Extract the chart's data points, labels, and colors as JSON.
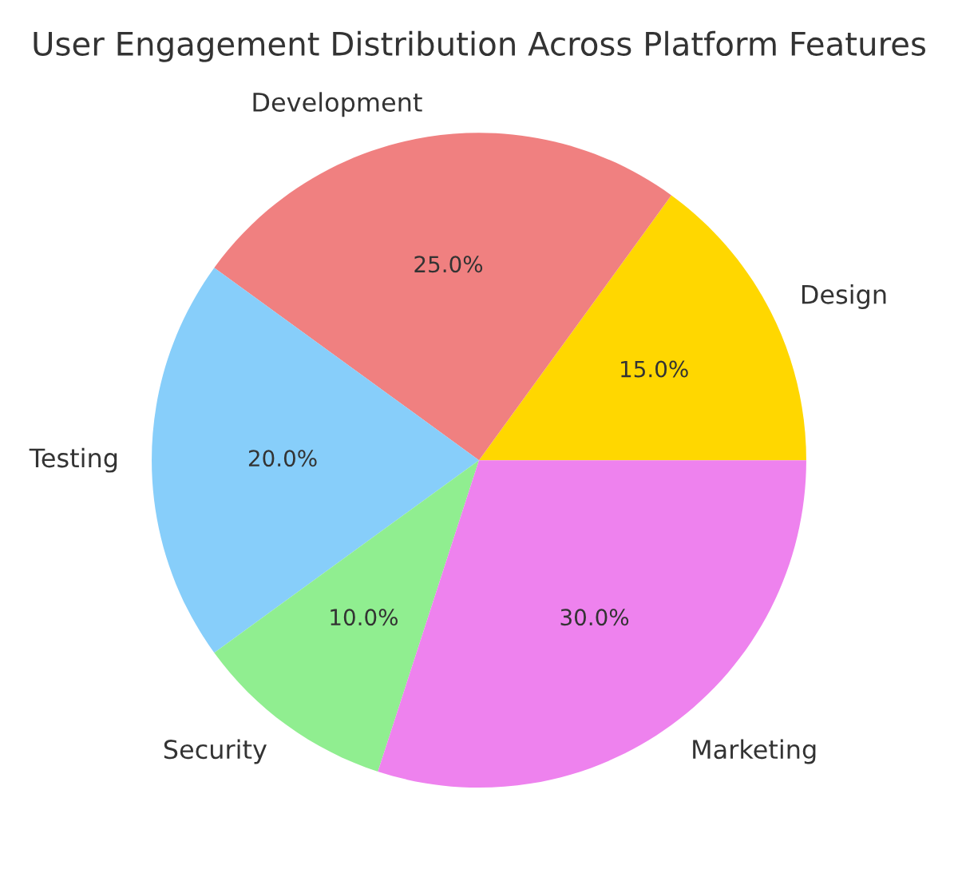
{
  "chart_data": {
    "type": "pie",
    "title": "User Engagement Distribution Across Platform Features",
    "categories": [
      "Design",
      "Development",
      "Testing",
      "Security",
      "Marketing"
    ],
    "values": [
      15,
      25,
      20,
      10,
      30
    ],
    "colors": [
      "#ffd700",
      "#f08080",
      "#87cefa",
      "#90ee90",
      "#ee82ee"
    ],
    "value_labels": [
      "15.0%",
      "25.0%",
      "20.0%",
      "10.0%",
      "30.0%"
    ]
  }
}
